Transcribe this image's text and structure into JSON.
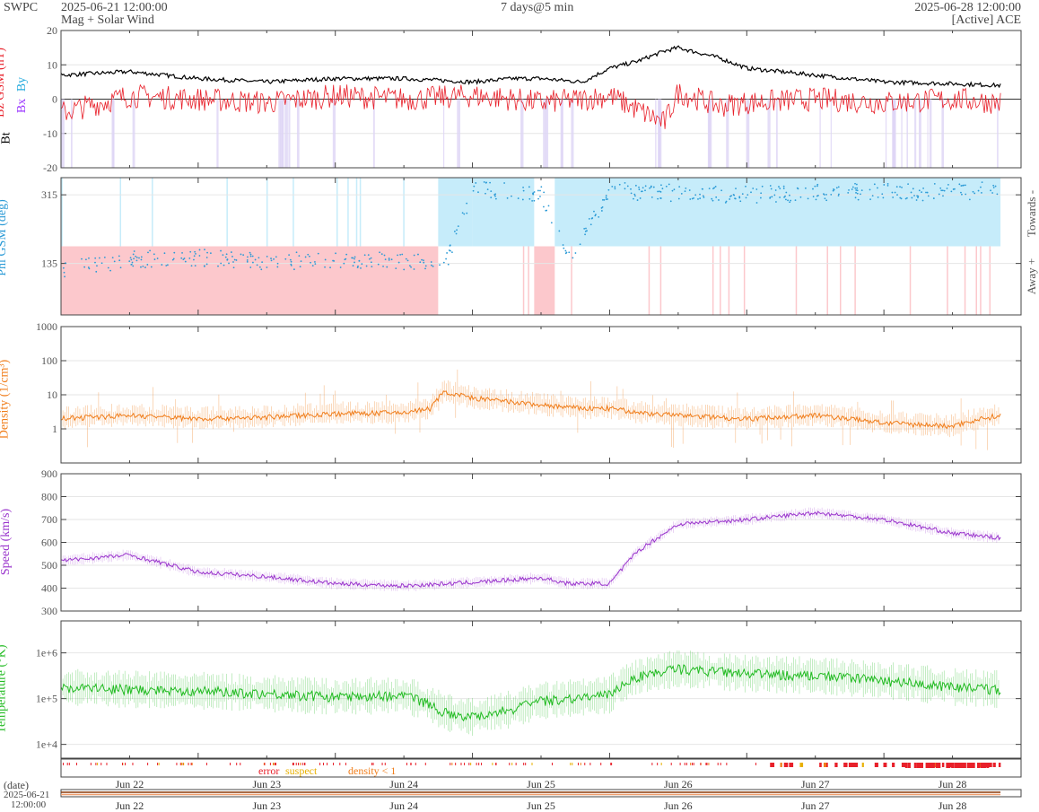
{
  "header": {
    "agency": "SWPC",
    "start": "2025-06-21 12:00:00",
    "subtitle": "Mag + Solar Wind",
    "span": "7 days@5 min",
    "end": "2025-06-28 12:00:00",
    "source": "[Active] ACE"
  },
  "colors": {
    "bt": "#000000",
    "bz": "#e8202a",
    "bx": "#9933ff",
    "by": "#22aadd",
    "phi_towards": "#c6ecfa",
    "phi_away": "#fcc8cc",
    "phi_dots": "#2a9ad6",
    "density": "#f07d1a",
    "speed": "#9933cc",
    "temperature": "#22bb22",
    "error": "#e8202a",
    "suspect": "#e8b000",
    "density_lt1": "#f07d1a"
  },
  "legend": {
    "error": "error",
    "suspect": "suspect",
    "density_lt1": "density < 1"
  },
  "bottom": {
    "date_label": "(date)",
    "date_value": "2025-06-21",
    "time_value": "12:00:00"
  },
  "chart_data": [
    {
      "type": "line",
      "name": "mag",
      "ylabel_parts": [
        "Bt",
        "Bz GSM (nT)",
        "Bx",
        "By"
      ],
      "ylim": [
        -20,
        20
      ],
      "yticks": [
        -20,
        -10,
        0,
        10,
        20
      ],
      "xticks": [
        "Jun 22",
        "Jun 23",
        "Jun 24",
        "Jun 25",
        "Jun 26",
        "Jun 27",
        "Jun 28"
      ],
      "x_days": [
        0,
        0.5,
        1,
        1.5,
        2,
        2.5,
        3,
        3.3,
        3.5,
        3.8,
        4,
        4.2,
        4.4,
        4.5,
        4.8,
        5,
        5.5,
        6,
        6.5,
        6.85
      ],
      "series": [
        {
          "name": "Bt",
          "values": [
            7,
            8,
            6,
            5,
            6,
            6,
            5,
            6,
            6,
            5,
            9,
            11,
            14,
            15,
            12,
            9,
            7,
            5,
            4.5,
            4
          ]
        },
        {
          "name": "Bz",
          "values": [
            -4,
            1,
            0,
            -1,
            1,
            0,
            1,
            0,
            -1,
            0,
            1,
            -3,
            -7,
            2,
            -2,
            -1,
            0,
            -1,
            0,
            -1
          ]
        }
      ]
    },
    {
      "type": "scatter",
      "name": "phi",
      "ylabel": "Phi GSM (deg)",
      "right_labels": [
        "Towards -",
        "Away +"
      ],
      "yticks": [
        135,
        315
      ],
      "x_days": [
        0,
        0.5,
        1,
        1.5,
        2,
        2.5,
        2.8,
        3.0,
        3.5,
        3.7,
        4.0,
        4.5,
        5.0,
        5.5,
        6.0,
        6.5,
        6.85
      ],
      "values": [
        120,
        145,
        150,
        140,
        145,
        140,
        130,
        330,
        320,
        140,
        325,
        320,
        315,
        320,
        325,
        320,
        330
      ]
    },
    {
      "type": "line",
      "name": "density",
      "ylabel": "Density (1/cm³)",
      "scale": "log",
      "yticks": [
        1,
        10,
        100,
        1000
      ],
      "x_days": [
        0,
        0.5,
        1,
        1.5,
        2,
        2.5,
        2.7,
        2.8,
        3.0,
        3.3,
        3.5,
        3.8,
        4.0,
        4.2,
        4.5,
        5.0,
        5.5,
        6.0,
        6.5,
        6.85
      ],
      "values": [
        2,
        2.5,
        2,
        2.2,
        2.8,
        3,
        4,
        12,
        8,
        6,
        5,
        4,
        4,
        3,
        2.5,
        2,
        2.5,
        1.5,
        1.2,
        2.5
      ]
    },
    {
      "type": "line",
      "name": "speed",
      "ylabel": "Speed (km/s)",
      "ylim": [
        300,
        900
      ],
      "yticks": [
        300,
        400,
        500,
        600,
        700,
        800,
        900
      ],
      "x_days": [
        0,
        0.5,
        1,
        1.5,
        2,
        2.5,
        3,
        3.5,
        3.7,
        4.0,
        4.2,
        4.5,
        5.0,
        5.5,
        6.0,
        6.5,
        6.85
      ],
      "values": [
        520,
        545,
        470,
        450,
        420,
        410,
        425,
        445,
        420,
        420,
        560,
        680,
        700,
        730,
        700,
        640,
        620
      ]
    },
    {
      "type": "line",
      "name": "temperature",
      "ylabel": "Temperature (°K)",
      "scale": "log",
      "yticks": [
        "1e+4",
        "1e+5",
        "1e+6"
      ],
      "x_days": [
        0,
        0.5,
        1,
        1.5,
        2,
        2.5,
        2.8,
        3.0,
        3.3,
        3.5,
        4.0,
        4.2,
        4.5,
        5.0,
        5.5,
        6.0,
        6.5,
        6.85
      ],
      "values": [
        180000,
        160000,
        150000,
        130000,
        110000,
        120000,
        50000,
        40000,
        60000,
        90000,
        120000,
        300000,
        450000,
        350000,
        320000,
        250000,
        180000,
        160000
      ]
    }
  ]
}
